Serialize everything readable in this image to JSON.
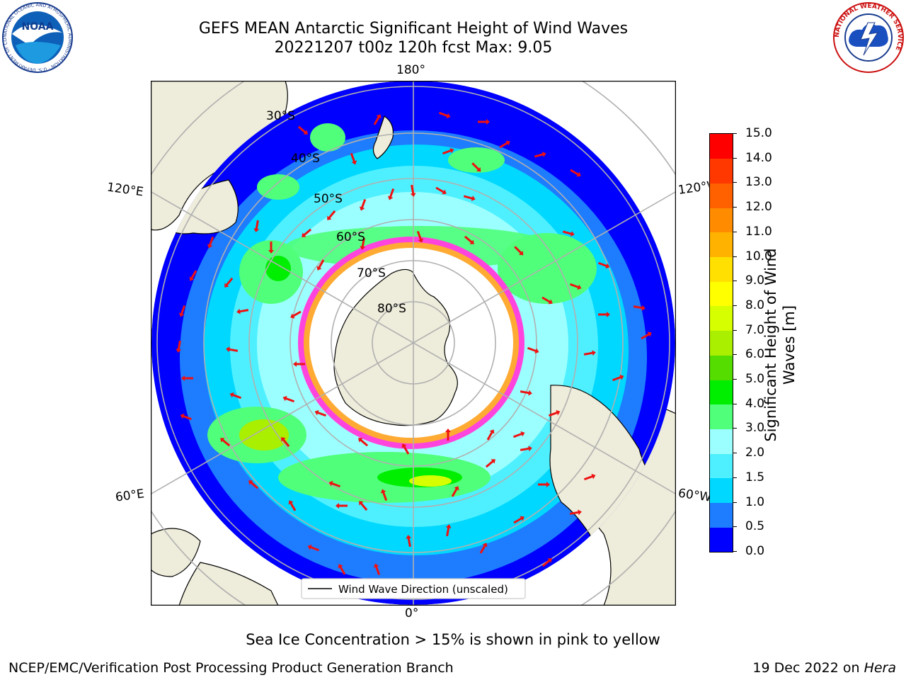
{
  "header": {
    "title_line1": "GEFS MEAN Antarctic Significant Height of Wind Waves",
    "title_line2": "20221207 t00z 120h fcst   Max: 9.05"
  },
  "logos": {
    "noaa_text": "NOAA",
    "noaa_ring_text": "NATIONAL OCEANIC AND ATMOSPHERIC ADMINISTRATION · U.S. DEPARTMENT OF COMMERCE",
    "nws_ring_text": "NATIONAL WEATHER SERVICE"
  },
  "map": {
    "lon_labels": {
      "top": "180°",
      "bottom": "0°",
      "left_upper": "120°E",
      "left_lower": "60°E",
      "right_upper": "120°W",
      "right_lower": "60°W"
    },
    "lat_labels": [
      "30°S",
      "40°S",
      "50°S",
      "60°S",
      "70°S",
      "80°S"
    ],
    "legend_label": "Wind Wave Direction (unscaled)",
    "colors": {
      "land": "#eeecda",
      "ice": "#ffffff",
      "ice_edge_pink": "#ff44dd",
      "ice_edge_orange": "#ffaa33",
      "arrow": "#ee1111",
      "graticule": "#b0b0b0"
    }
  },
  "colorbar": {
    "label": "Significant Height of Wind Waves [m]",
    "label_line1": "Significant Height of Wind",
    "label_line2": "Waves [m]",
    "ticks": [
      "0.0",
      "0.5",
      "1.0",
      "1.5",
      "2.0",
      "3.0",
      "4.0",
      "5.0",
      "6.0",
      "7.0",
      "8.0",
      "9.0",
      "10.0",
      "11.0",
      "12.0",
      "13.0",
      "14.0",
      "15.0"
    ],
    "colors": [
      "#0000ff",
      "#1e7cff",
      "#00d8ff",
      "#4ef0ff",
      "#9cffff",
      "#50ff7a",
      "#00ee00",
      "#55dd00",
      "#aaee00",
      "#d6ff00",
      "#ffff00",
      "#ffe000",
      "#ffb300",
      "#ff8c00",
      "#ff6000",
      "#ff3800",
      "#ff0000"
    ]
  },
  "footer": {
    "ice_note": "Sea Ice Concentration > 15% is shown in pink to yellow",
    "branch": "NCEP/EMC/Verification Post Processing Product Generation Branch",
    "date": "19 Dec 2022 on",
    "host": "Hera"
  }
}
